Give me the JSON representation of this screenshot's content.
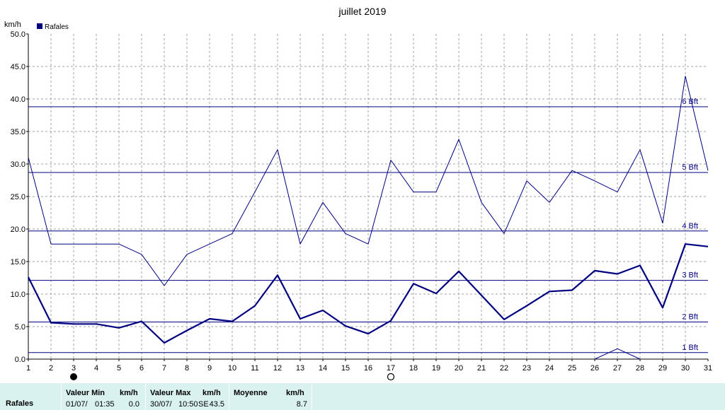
{
  "chart_data": {
    "type": "line",
    "title": "juillet 2019",
    "ylabel": "km/h",
    "ylim": [
      0,
      50
    ],
    "x": [
      1,
      2,
      3,
      4,
      5,
      6,
      7,
      8,
      9,
      10,
      11,
      12,
      13,
      14,
      15,
      16,
      17,
      18,
      19,
      20,
      21,
      22,
      23,
      24,
      25,
      26,
      27,
      28,
      29,
      30,
      31
    ],
    "yticks": [
      "0.0",
      "5.0",
      "10.0",
      "15.0",
      "20.0",
      "25.0",
      "30.0",
      "35.0",
      "40.0",
      "45.0",
      "50.0"
    ],
    "legend": [
      {
        "name": "Rafales",
        "color": "#000080"
      }
    ],
    "series": [
      {
        "name": "Rafales",
        "style": "thin",
        "values": [
          31.0,
          17.7,
          17.7,
          17.7,
          17.7,
          16.1,
          11.3,
          16.1,
          17.7,
          19.3,
          25.7,
          32.2,
          17.7,
          24.1,
          19.3,
          17.7,
          30.6,
          25.7,
          25.7,
          33.8,
          24.1,
          19.3,
          27.4,
          24.1,
          29.0,
          27.4,
          25.7,
          32.2,
          20.9,
          43.5,
          29.0
        ]
      },
      {
        "values": [
          12.6,
          5.6,
          5.4,
          5.4,
          4.8,
          5.8,
          2.5,
          4.4,
          6.2,
          5.8,
          8.2,
          12.9,
          6.2,
          7.5,
          5.1,
          3.9,
          5.9,
          11.6,
          10.1,
          13.5,
          9.8,
          6.1,
          8.2,
          10.4,
          10.6,
          13.6,
          13.1,
          14.4,
          7.9,
          17.7,
          17.3
        ]
      },
      {
        "values": [
          null,
          null,
          null,
          null,
          null,
          null,
          null,
          null,
          null,
          null,
          null,
          null,
          null,
          null,
          null,
          null,
          null,
          null,
          null,
          null,
          null,
          null,
          null,
          null,
          null,
          0.0,
          1.6,
          0.0,
          null,
          null,
          null
        ]
      }
    ],
    "beaufort": [
      {
        "label": "1 Bft",
        "value": 1.0
      },
      {
        "label": "2 Bft",
        "value": 5.7
      },
      {
        "label": "3 Bft",
        "value": 12.1
      },
      {
        "label": "4 Bft",
        "value": 19.7
      },
      {
        "label": "5 Bft",
        "value": 28.7
      },
      {
        "label": "6 Bft",
        "value": 38.8
      }
    ],
    "moon": [
      {
        "day": 3,
        "phase": "new-moon"
      },
      {
        "day": 17,
        "phase": "full-moon"
      }
    ],
    "grid": true
  },
  "footer": {
    "row_label": "Rafales",
    "min_header": "Valeur Min",
    "min_unit": "km/h",
    "min_date": "01/07/",
    "min_time": "01:35",
    "min_value": "0.0",
    "max_header": "Valeur Max",
    "max_unit": "km/h",
    "max_date": "30/07/",
    "max_time": "10:50",
    "max_dir": "SE",
    "max_value": "43.5",
    "avg_header": "Moyenne",
    "avg_unit": "km/h",
    "avg_value": "8.7"
  }
}
